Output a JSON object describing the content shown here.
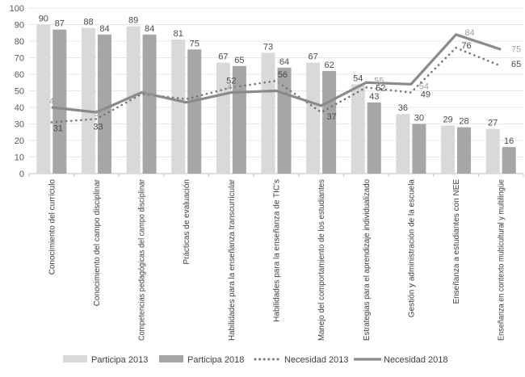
{
  "chart_data": {
    "type": "bar",
    "subtype": "combo bar + line",
    "title": "",
    "xlabel": "",
    "ylabel": "",
    "categories": [
      "Conocimiento del currículo",
      "Conocimiento del campo disciplinar",
      "Competencias pedagógicas del campo disciplinar",
      "Prácticas de evaluación",
      "Habilidades para la enseñanza transcurricular",
      "Habilidades para la enseñanza de TIC's",
      "Manejo del comportamiento de los estudiantes",
      "Estrategias para el aprendizaje individualizado",
      "Gestión y administración de la escuela",
      "Enseñanza a estudiantes con NEE",
      "Enseñanza en contexto multicultural y multilingüe"
    ],
    "series": [
      {
        "name": "Participa 2013",
        "type": "bar",
        "style": "solid-fill",
        "color": "#d9d9d9",
        "values": [
          90,
          88,
          89,
          81,
          67,
          73,
          67,
          54,
          36,
          29,
          27
        ]
      },
      {
        "name": "Participa 2018",
        "type": "bar",
        "style": "solid-fill",
        "color": "#a6a6a6",
        "values": [
          87,
          84,
          84,
          75,
          65,
          64,
          62,
          43,
          30,
          28,
          16
        ]
      },
      {
        "name": "Necesidad 2013",
        "type": "line",
        "style": "dotted",
        "color": "#757575",
        "values": [
          31,
          33,
          48,
          45,
          52,
          56,
          37,
          52,
          49,
          76,
          65
        ],
        "label_hidden_at_indices": [
          2,
          3
        ],
        "label_color": "#4a4a4a"
      },
      {
        "name": "Necesidad 2018",
        "type": "line",
        "style": "solid",
        "color": "#8a8a8a",
        "values": [
          40,
          37,
          49,
          43,
          49,
          50,
          41,
          55,
          54,
          84,
          75
        ],
        "label_hidden_at_indices": [],
        "label_color": "#a3a3a3"
      }
    ],
    "y_axis": {
      "min": 0,
      "max": 100,
      "step": 10,
      "tick_labels": [
        "0",
        "10",
        "20",
        "30",
        "40",
        "50",
        "60",
        "70",
        "80",
        "90",
        "100"
      ]
    },
    "grid": true,
    "legend_position": "bottom",
    "legend": [
      "Participa 2013",
      "Participa 2018",
      "Necesidad 2013",
      "Necesidad 2018"
    ],
    "colors": {
      "bar_value_label": "#4a4a4a",
      "axis_text": "#595959",
      "category_text": "#3f3f3f",
      "gridline": "#e8e8e8",
      "axis_line": "#bfbfbf",
      "legend_text": "#404040"
    }
  }
}
